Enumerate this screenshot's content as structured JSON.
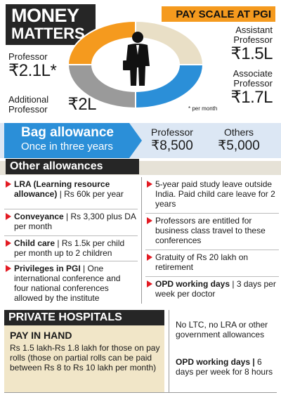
{
  "header": {
    "money_line1": "MONEY",
    "money_line2": "MATTERS",
    "pay_scale": "PAY SCALE AT PGI"
  },
  "pay_scale": {
    "assistant": {
      "title": "Assistant Professor",
      "value": "₹1.5L",
      "color": "#e9dfc6"
    },
    "associate": {
      "title": "Associate Professor",
      "value": "₹1.7L",
      "color": "#2b8fd8"
    },
    "professor": {
      "title": "Professor",
      "value": "₹2.1L*",
      "color": "#f59a1e"
    },
    "additional": {
      "title": "Additional Professor",
      "value": "₹2L",
      "color": "#9a9a9a"
    },
    "footnote": "* per month"
  },
  "bag_allowance": {
    "title": "Bag allowance",
    "subtitle": "Once in three years",
    "professor_label": "Professor",
    "professor_value": "₹8,500",
    "others_label": "Others",
    "others_value": "₹5,000"
  },
  "other_allowances": {
    "title": "Other allowances",
    "left": [
      {
        "bold": "LRA (Learning resource allowance)",
        "rest": " | Rs 60k per year"
      },
      {
        "bold": "Conveyance",
        "rest": " | Rs 3,300 plus DA per month"
      },
      {
        "bold": "Child care",
        "rest": " | Rs 1.5k per child per month up to 2 children"
      },
      {
        "bold": "Privileges in PGI",
        "rest": " | One international conference and four national conferences allowed by the institute"
      }
    ],
    "right": [
      {
        "bold": "",
        "rest": "5-year paid study leave outside India. Paid child care leave for 2 years"
      },
      {
        "bold": "",
        "rest": "Professors are entitled for business class travel to these conferences"
      },
      {
        "bold": "",
        "rest": "Gratuity of Rs 20 lakh on retirement"
      },
      {
        "bold": "OPD working days",
        "rest": " | 3 days per week per doctor"
      }
    ]
  },
  "private_hospitals": {
    "title": "PRIVATE HOSPITALS",
    "pay_in_hand": "PAY IN HAND",
    "pay_text": "Rs 1.5 lakh-Rs 1.8 lakh for those on pay rolls (those on partial rolls can be paid between Rs 8 to Rs 10 lakh per month)",
    "no_ltc": "No LTC, no LRA or other government allowances",
    "opd_bold": "OPD working days |",
    "opd_rest": " 6 days per week for 8 hours"
  }
}
